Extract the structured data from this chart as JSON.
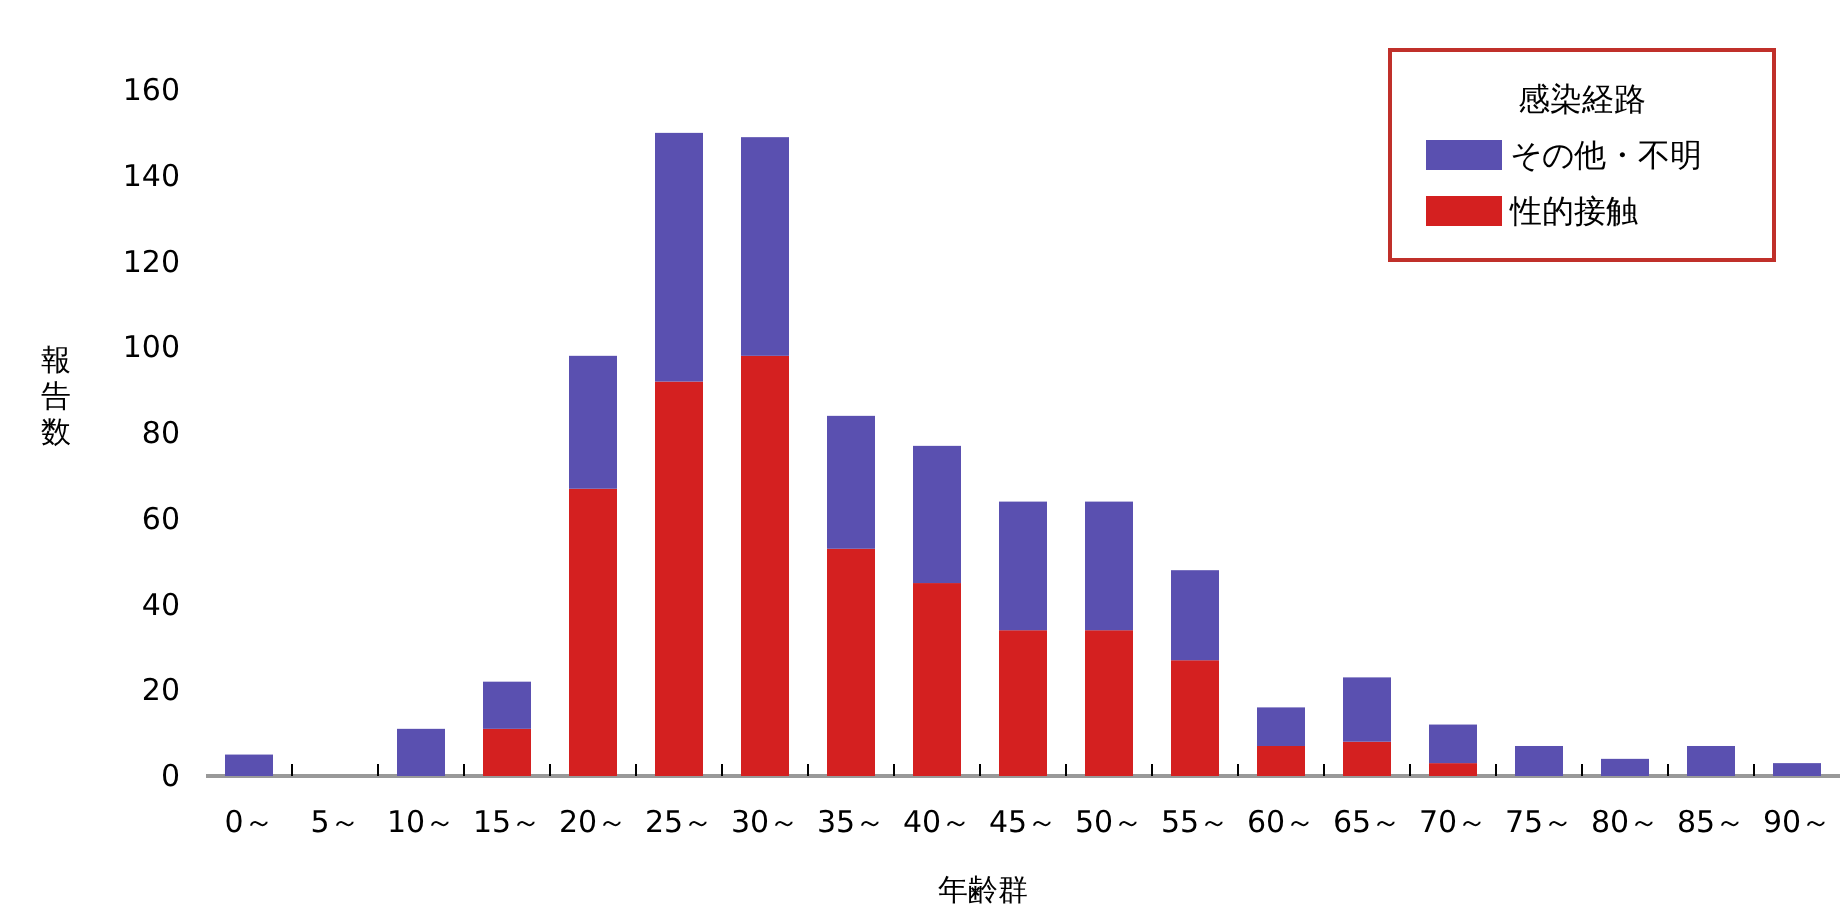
{
  "chart_data": {
    "type": "bar",
    "stacked": true,
    "xlabel": "年齢群",
    "ylabel": "報告数",
    "legend_title": "感染経路",
    "legend": "top right",
    "categories": [
      "0～",
      "5～",
      "10～",
      "15～",
      "20～",
      "25～",
      "30～",
      "35～",
      "40～",
      "45～",
      "50～",
      "55～",
      "60～",
      "65～",
      "70～",
      "75～",
      "80～",
      "85～",
      "90～"
    ],
    "series": [
      {
        "name": "性的接触",
        "color": "#d42020",
        "values": [
          0,
          0,
          0,
          11,
          67,
          92,
          98,
          53,
          45,
          34,
          34,
          27,
          7,
          8,
          3,
          0,
          0,
          0,
          0
        ]
      },
      {
        "name": "その他・不明",
        "color": "#5a50b0",
        "values": [
          5,
          0,
          11,
          11,
          31,
          58,
          51,
          31,
          32,
          30,
          30,
          21,
          9,
          15,
          9,
          7,
          4,
          7,
          3
        ]
      }
    ],
    "ylim": [
      0,
      160
    ],
    "yticks": [
      0,
      20,
      40,
      60,
      80,
      100,
      120,
      140,
      160
    ],
    "grid": false
  }
}
